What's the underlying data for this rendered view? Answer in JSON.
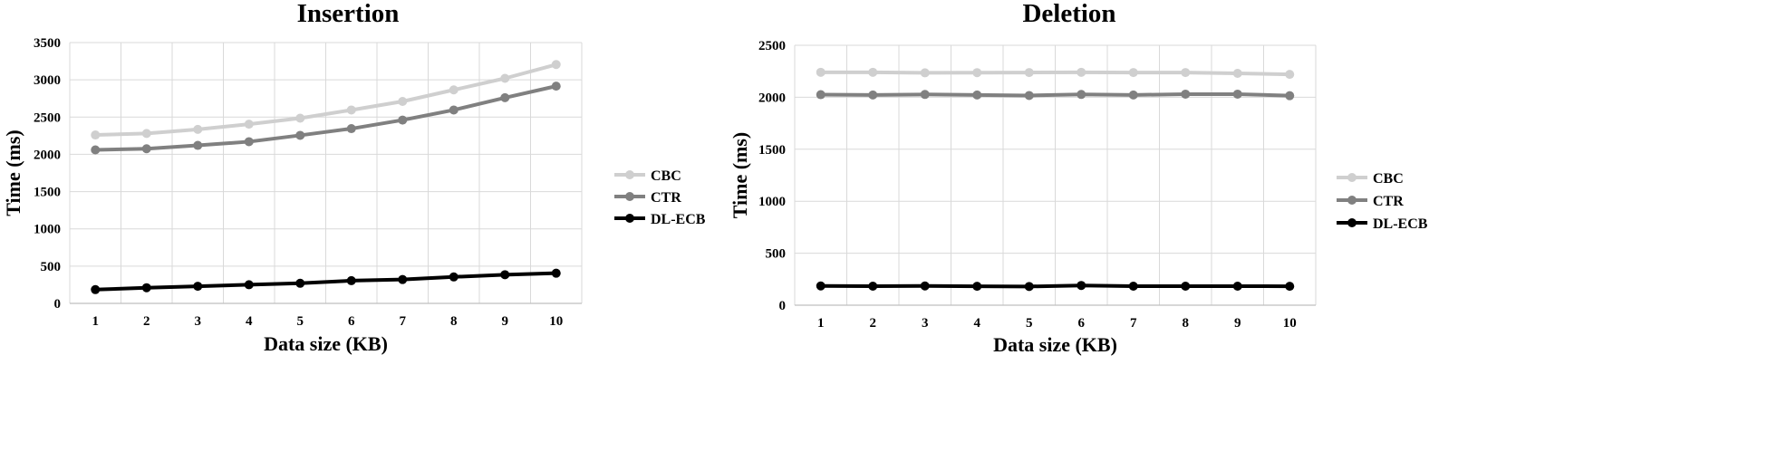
{
  "charts": [
    {
      "type": "line",
      "title": "Insertion",
      "xlabel": "Data size (KB)",
      "ylabel": "Time (ms)",
      "ylim": [
        0,
        3500
      ],
      "ytick_step": 500,
      "grid": true,
      "legend_position": "right",
      "categories": [
        "1",
        "2",
        "3",
        "4",
        "5",
        "6",
        "7",
        "8",
        "9",
        "10"
      ],
      "series": [
        {
          "name": "CBC",
          "color": "#cfcfcf",
          "values": [
            2260,
            2280,
            2335,
            2405,
            2485,
            2595,
            2710,
            2865,
            3020,
            3205
          ]
        },
        {
          "name": "CTR",
          "color": "#808080",
          "values": [
            2060,
            2075,
            2120,
            2170,
            2255,
            2345,
            2460,
            2595,
            2760,
            2915
          ]
        },
        {
          "name": "DL-ECB",
          "color": "#000000",
          "values": [
            185,
            210,
            230,
            250,
            270,
            305,
            320,
            355,
            385,
            405
          ]
        }
      ]
    },
    {
      "type": "line",
      "title": "Deletion",
      "xlabel": "Data size (KB)",
      "ylabel": "Time (ms)",
      "ylim": [
        0,
        2500
      ],
      "ytick_step": 500,
      "grid": true,
      "legend_position": "right",
      "categories": [
        "1",
        "2",
        "3",
        "4",
        "5",
        "6",
        "7",
        "8",
        "9",
        "10"
      ],
      "series": [
        {
          "name": "CBC",
          "color": "#cfcfcf",
          "values": [
            2240,
            2240,
            2235,
            2237,
            2238,
            2240,
            2238,
            2238,
            2230,
            2220
          ]
        },
        {
          "name": "CTR",
          "color": "#808080",
          "values": [
            2025,
            2022,
            2027,
            2022,
            2017,
            2027,
            2022,
            2030,
            2030,
            2015
          ]
        },
        {
          "name": "DL-ECB",
          "color": "#000000",
          "values": [
            185,
            183,
            185,
            182,
            180,
            190,
            183,
            183,
            183,
            182
          ]
        }
      ]
    }
  ]
}
